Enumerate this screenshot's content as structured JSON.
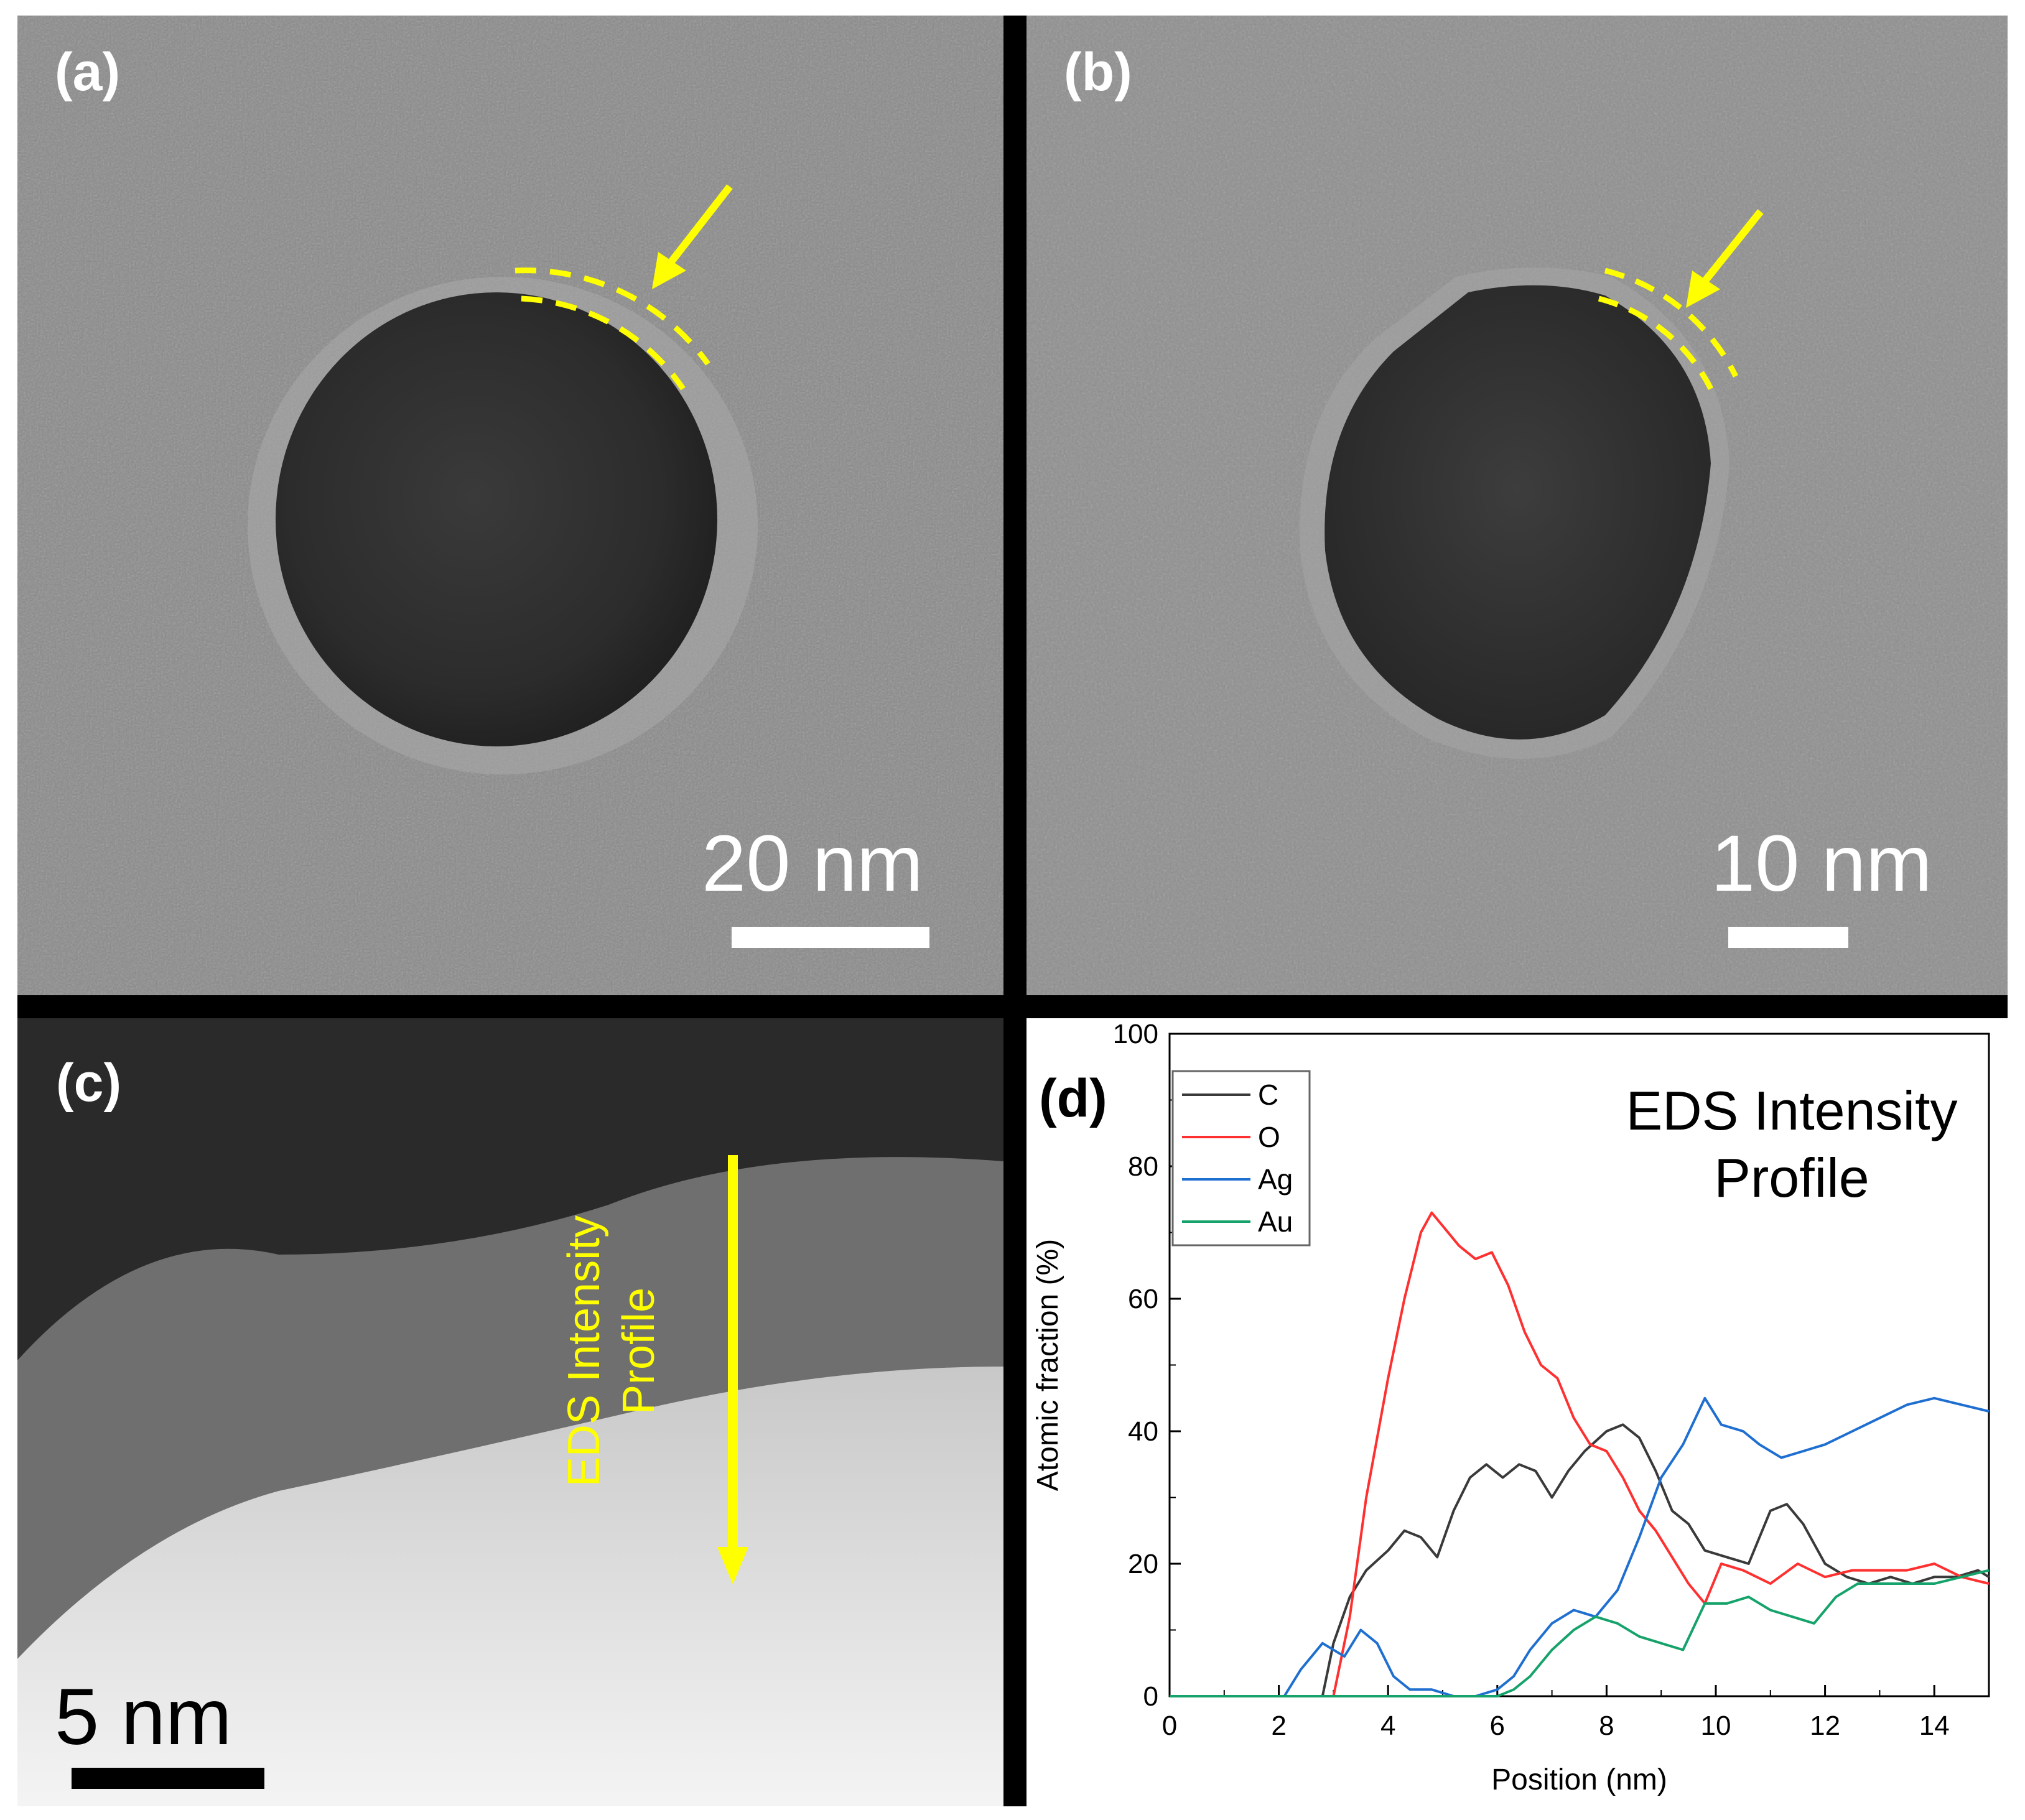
{
  "panels": {
    "a": {
      "label": "(a)",
      "scale_label": "20 nm"
    },
    "b": {
      "label": "(b)",
      "scale_label": "10 nm"
    },
    "c": {
      "label": "(c)",
      "scale_label": "5 nm",
      "arrow_label_line1": "EDS Intensity",
      "arrow_label_line2": "Profile"
    },
    "d": {
      "label": "(d)",
      "annotation_line1": "EDS Intensity",
      "annotation_line2": "Profile"
    }
  },
  "colors": {
    "arrow": "#ffff00",
    "C": "#3a3a3a",
    "O": "#ff3030",
    "Ag": "#1f6fd1",
    "Au": "#16a36b"
  },
  "chart_data": {
    "type": "line",
    "title": "",
    "xlabel": "Position (nm)",
    "ylabel": "Atomic fraction (%)",
    "xlim": [
      0,
      15
    ],
    "ylim": [
      0,
      100
    ],
    "xticks": [
      0,
      2,
      4,
      6,
      8,
      10,
      12,
      14
    ],
    "yticks": [
      0,
      20,
      40,
      60,
      80,
      100
    ],
    "legend_position": "top-left",
    "series": [
      {
        "name": "C",
        "color": "#3a3a3a",
        "x": [
          0,
          2.8,
          3.0,
          3.3,
          3.6,
          4.0,
          4.3,
          4.6,
          4.9,
          5.2,
          5.5,
          5.8,
          6.1,
          6.4,
          6.7,
          7.0,
          7.3,
          7.6,
          8.0,
          8.3,
          8.6,
          8.9,
          9.2,
          9.5,
          9.8,
          10.2,
          10.6,
          11.0,
          11.3,
          11.6,
          12.0,
          12.4,
          12.8,
          13.2,
          13.6,
          14.0,
          14.4,
          14.8,
          15.0
        ],
        "values": [
          0,
          0,
          8,
          15,
          19,
          22,
          25,
          24,
          21,
          28,
          33,
          35,
          33,
          35,
          34,
          30,
          34,
          37,
          40,
          41,
          39,
          34,
          28,
          26,
          22,
          21,
          20,
          28,
          29,
          26,
          20,
          18,
          17,
          18,
          17,
          18,
          18,
          19,
          18
        ]
      },
      {
        "name": "O",
        "color": "#ff3030",
        "x": [
          0,
          3.0,
          3.3,
          3.6,
          4.0,
          4.3,
          4.6,
          4.8,
          5.0,
          5.3,
          5.6,
          5.9,
          6.2,
          6.5,
          6.8,
          7.1,
          7.4,
          7.7,
          8.0,
          8.3,
          8.6,
          8.9,
          9.2,
          9.5,
          9.8,
          10.1,
          10.5,
          11.0,
          11.5,
          12.0,
          12.5,
          13.0,
          13.5,
          14.0,
          14.5,
          15.0
        ],
        "values": [
          0,
          0,
          12,
          30,
          48,
          60,
          70,
          73,
          71,
          68,
          66,
          67,
          62,
          55,
          50,
          48,
          42,
          38,
          37,
          33,
          28,
          25,
          21,
          17,
          14,
          20,
          19,
          17,
          20,
          18,
          19,
          19,
          19,
          20,
          18,
          17
        ]
      },
      {
        "name": "Ag",
        "color": "#1f6fd1",
        "x": [
          0,
          2.1,
          2.4,
          2.8,
          3.2,
          3.5,
          3.8,
          4.1,
          4.4,
          4.8,
          5.2,
          5.6,
          6.0,
          6.3,
          6.6,
          7.0,
          7.4,
          7.8,
          8.2,
          8.6,
          9.0,
          9.4,
          9.8,
          10.1,
          10.5,
          10.8,
          11.2,
          11.6,
          12.0,
          12.5,
          13.0,
          13.5,
          14.0,
          14.5,
          15.0
        ],
        "values": [
          0,
          0,
          4,
          8,
          6,
          10,
          8,
          3,
          1,
          1,
          0,
          0,
          1,
          3,
          7,
          11,
          13,
          12,
          16,
          24,
          33,
          38,
          45,
          41,
          40,
          38,
          36,
          37,
          38,
          40,
          42,
          44,
          45,
          44,
          43
        ]
      },
      {
        "name": "Au",
        "color": "#16a36b",
        "x": [
          0,
          6.0,
          6.3,
          6.6,
          7.0,
          7.4,
          7.8,
          8.2,
          8.6,
          9.0,
          9.4,
          9.8,
          10.2,
          10.6,
          11.0,
          11.4,
          11.8,
          12.2,
          12.6,
          13.0,
          13.5,
          14.0,
          14.5,
          15.0
        ],
        "values": [
          0,
          0,
          1,
          3,
          7,
          10,
          12,
          11,
          9,
          8,
          7,
          14,
          14,
          15,
          13,
          12,
          11,
          15,
          17,
          17,
          17,
          17,
          18,
          19
        ]
      }
    ]
  }
}
